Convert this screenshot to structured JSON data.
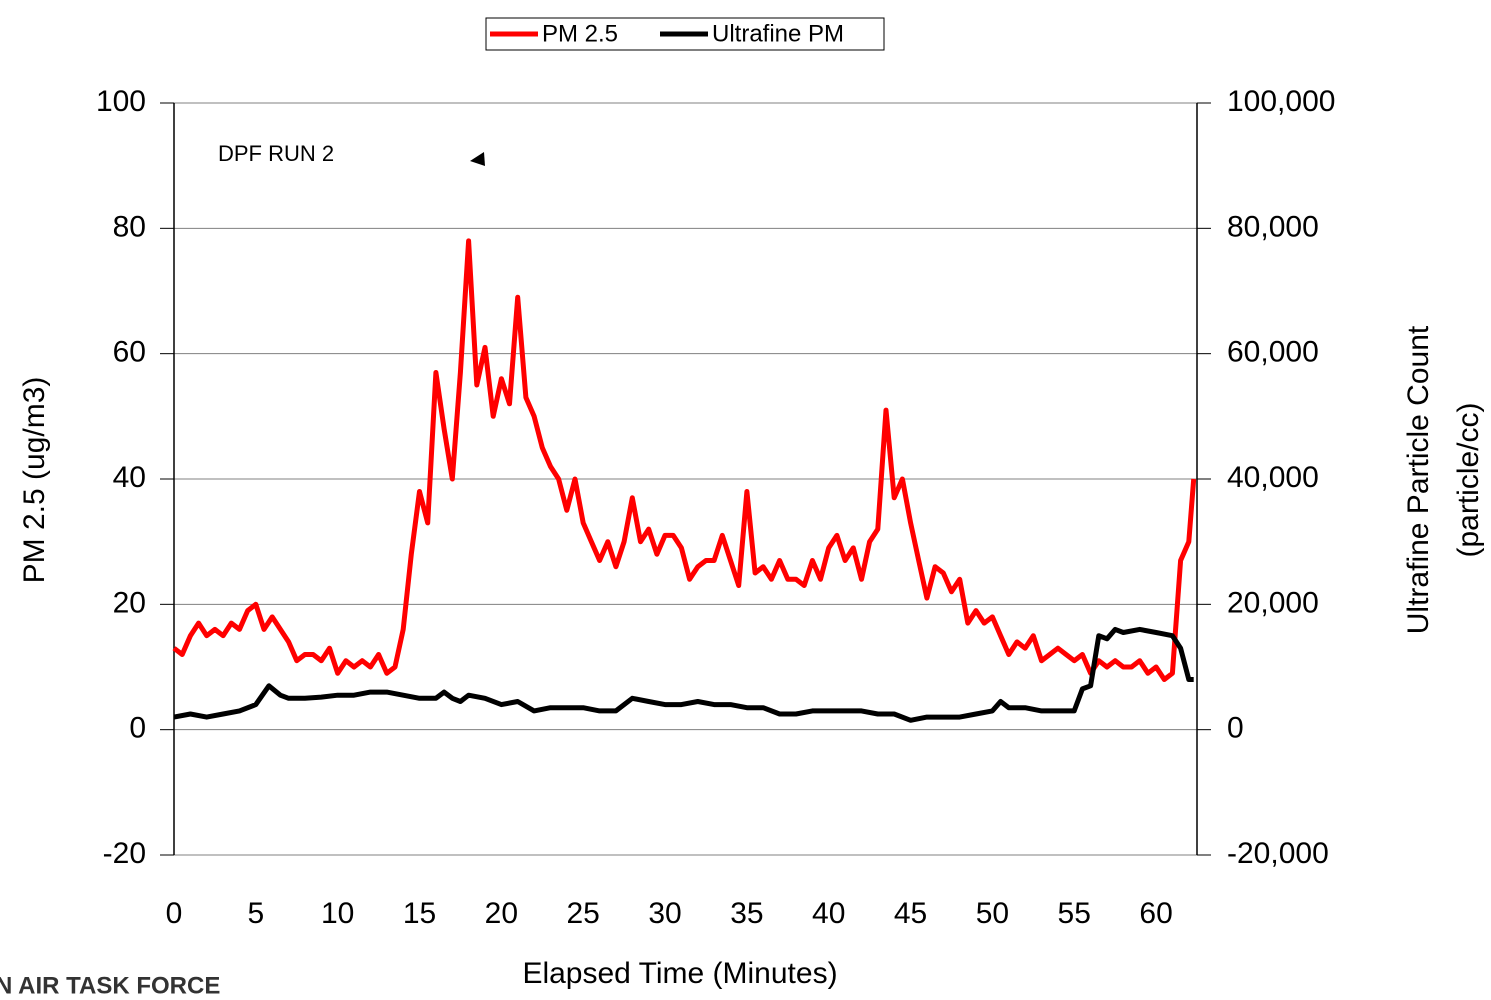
{
  "chart_data": {
    "type": "line",
    "title": null,
    "annotation": "DPF RUN 2",
    "xlabel": "Elapsed Time (Minutes)",
    "ylabel": "PM 2.5 (ug/m3)",
    "y2label": [
      "Ultrafine Particle Count",
      "(particle/cc)"
    ],
    "xlim": [
      0,
      62.5
    ],
    "xticks": [
      0,
      5,
      10,
      15,
      20,
      25,
      30,
      35,
      40,
      45,
      50,
      55,
      60
    ],
    "ylim": [
      -20,
      100
    ],
    "yticks": [
      -20,
      0,
      20,
      40,
      60,
      80,
      100
    ],
    "y2lim": [
      -20000,
      100000
    ],
    "y2ticks": [
      {
        "value": -20000,
        "label": "-20,000"
      },
      0,
      {
        "value": 20000,
        "label": "20,000"
      },
      {
        "value": 40000,
        "label": "40,000"
      },
      {
        "value": 60000,
        "label": "60,000"
      },
      {
        "value": 80000,
        "label": "80,000"
      },
      {
        "value": 100000,
        "label": "100,000"
      }
    ],
    "grid": true,
    "legend": "top",
    "series": [
      {
        "name": "PM 2.5",
        "color": "#ff0000",
        "x": [
          0,
          0.5,
          1,
          1.5,
          2,
          2.5,
          3,
          3.5,
          4,
          4.5,
          5,
          5.5,
          6,
          6.5,
          7,
          7.5,
          8,
          8.5,
          9,
          9.5,
          10,
          10.5,
          11,
          11.5,
          12,
          12.5,
          13,
          13.5,
          14,
          14.5,
          15,
          15.5,
          16,
          16.5,
          17,
          17.5,
          18,
          18.5,
          19,
          19.5,
          20,
          20.5,
          21,
          21.5,
          22,
          22.5,
          23,
          23.5,
          24,
          24.5,
          25,
          25.5,
          26,
          26.5,
          27,
          27.5,
          28,
          28.5,
          29,
          29.5,
          30,
          30.5,
          31,
          31.5,
          32,
          32.5,
          33,
          33.5,
          34,
          34.5,
          35,
          35.5,
          36,
          36.5,
          37,
          37.5,
          38,
          38.5,
          39,
          39.5,
          40,
          40.5,
          41,
          41.5,
          42,
          42.5,
          43,
          43.5,
          44,
          44.5,
          45,
          45.5,
          46,
          46.5,
          47,
          47.5,
          48,
          48.5,
          49,
          49.5,
          50,
          50.5,
          51,
          51.5,
          52,
          52.5,
          53,
          53.5,
          54,
          54.5,
          55,
          55.5,
          56,
          56.5,
          57,
          57.5,
          58,
          58.5,
          59,
          59.5,
          60,
          60.5,
          61,
          61.5,
          62,
          62.3
        ],
        "values": [
          13,
          12,
          15,
          17,
          15,
          16,
          15,
          17,
          16,
          19,
          20,
          16,
          18,
          16,
          14,
          11,
          12,
          12,
          11,
          13,
          9,
          11,
          10,
          11,
          10,
          12,
          9,
          10,
          16,
          28,
          38,
          33,
          57,
          48,
          40,
          57,
          78,
          55,
          61,
          50,
          56,
          52,
          69,
          53,
          50,
          45,
          42,
          40,
          35,
          40,
          33,
          30,
          27,
          30,
          26,
          30,
          37,
          30,
          32,
          28,
          31,
          31,
          29,
          24,
          26,
          27,
          27,
          31,
          27,
          23,
          38,
          25,
          26,
          24,
          27,
          24,
          24,
          23,
          27,
          24,
          29,
          31,
          27,
          29,
          24,
          30,
          32,
          51,
          37,
          40,
          33,
          27,
          21,
          26,
          25,
          22,
          24,
          17,
          19,
          17,
          18,
          15,
          12,
          14,
          13,
          15,
          11,
          12,
          13,
          12,
          11,
          12,
          9,
          11,
          10,
          11,
          10,
          10,
          11,
          9,
          10,
          8,
          9,
          27,
          30,
          40
        ]
      },
      {
        "name": "Ultrafine PM",
        "color": "#000000",
        "axis": "y2",
        "x": [
          0,
          1,
          2,
          3,
          4,
          5,
          5.8,
          6.5,
          7,
          8,
          9,
          10,
          11,
          12,
          13,
          14,
          15,
          16,
          16.5,
          17,
          17.5,
          18,
          19,
          20,
          21,
          22,
          23,
          24,
          25,
          26,
          27,
          28,
          29,
          30,
          31,
          32,
          33,
          34,
          35,
          36,
          37,
          38,
          39,
          40,
          41,
          42,
          43,
          44,
          45,
          46,
          47,
          48,
          49,
          50,
          50.5,
          51,
          52,
          53,
          54,
          55,
          55.5,
          56,
          56.5,
          57,
          57.5,
          58,
          59,
          60,
          61,
          61.5,
          62,
          62.3
        ],
        "values": [
          2000,
          2500,
          2000,
          2500,
          3000,
          4000,
          7000,
          5500,
          5000,
          5000,
          5200,
          5500,
          5500,
          6000,
          6000,
          5500,
          5000,
          5000,
          6000,
          5000,
          4500,
          5500,
          5000,
          4000,
          4500,
          3000,
          3500,
          3500,
          3500,
          3000,
          3000,
          5000,
          4500,
          4000,
          4000,
          4500,
          4000,
          4000,
          3500,
          3500,
          2500,
          2500,
          3000,
          3000,
          3000,
          3000,
          2500,
          2500,
          1500,
          2000,
          2000,
          2000,
          2500,
          3000,
          4500,
          3500,
          3500,
          3000,
          3000,
          3000,
          6500,
          7000,
          15000,
          14500,
          16000,
          15500,
          16000,
          15500,
          15000,
          13000,
          8000,
          8000
        ]
      }
    ]
  },
  "logo": "N AIR TASK FORCE"
}
